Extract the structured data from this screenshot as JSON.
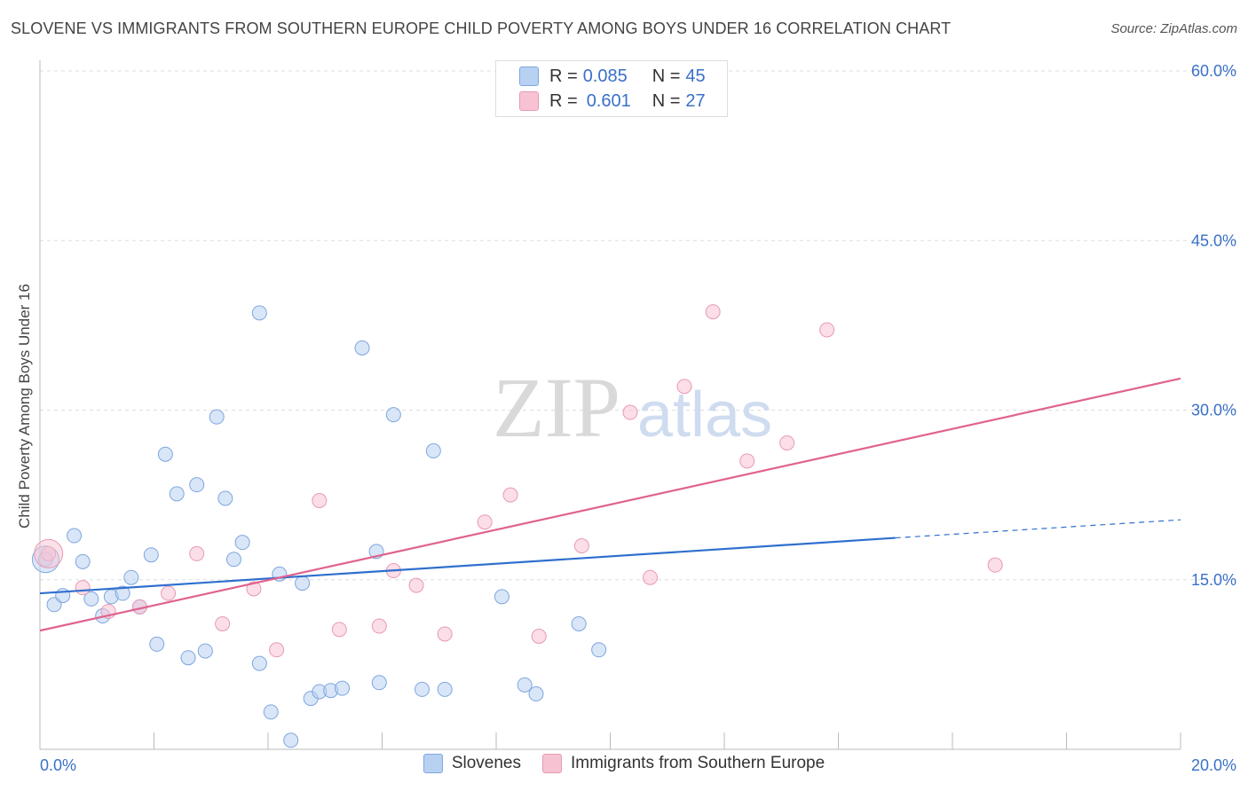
{
  "title": "SLOVENE VS IMMIGRANTS FROM SOUTHERN EUROPE CHILD POVERTY AMONG BOYS UNDER 16 CORRELATION CHART",
  "source": "Source: ZipAtlas.com",
  "watermark": {
    "zip": "ZIP",
    "atlas": "atlas"
  },
  "legend": {
    "rows": [
      {
        "r_label": "R = ",
        "r_value": "0.085",
        "n_label": "N = ",
        "n_value": "45"
      },
      {
        "r_label": "R = ",
        "r_value": "0.601",
        "n_label": "N = ",
        "n_value": "27"
      }
    ]
  },
  "colors": {
    "slovenes_fill": "#b8d1f2",
    "slovenes_stroke": "#7ea6de",
    "slovenes_line": "#2f6fce",
    "immigrants_fill": "#f7c3d3",
    "immigrants_stroke": "#e89ab3",
    "immigrants_line": "#e0628f",
    "tick_text": "#3a70c8",
    "grid": "#dddddd"
  },
  "chart_data": {
    "type": "scatter",
    "title": "SLOVENE VS IMMIGRANTS FROM SOUTHERN EUROPE CHILD POVERTY AMONG BOYS UNDER 16 CORRELATION CHART",
    "xlabel": "",
    "ylabel": "Child Poverty Among Boys Under 16",
    "xlim": [
      0,
      20
    ],
    "ylim": [
      0,
      60
    ],
    "x_tick_labels": [
      "0.0%",
      "20.0%"
    ],
    "y_ticks": [
      15,
      30,
      45,
      60
    ],
    "y_tick_labels": [
      "15.0%",
      "30.0%",
      "45.0%",
      "60.0%"
    ],
    "grid": true,
    "legend_position": "bottom",
    "series": [
      {
        "name": "Slovenes",
        "r": 0.085,
        "n": 45,
        "trend": {
          "x0": 0,
          "y0": 13.8,
          "x1": 15,
          "y1": 18.7,
          "dashed_to_x": 20,
          "dashed_to_y": 20.3
        },
        "points": [
          [
            0.1,
            16.8
          ],
          [
            0.25,
            12.8
          ],
          [
            0.4,
            13.6
          ],
          [
            0.6,
            18.9
          ],
          [
            0.75,
            16.6
          ],
          [
            0.9,
            13.3
          ],
          [
            1.1,
            11.8
          ],
          [
            1.25,
            13.5
          ],
          [
            1.45,
            13.8
          ],
          [
            1.6,
            15.2
          ],
          [
            1.75,
            12.6
          ],
          [
            1.95,
            17.2
          ],
          [
            2.05,
            9.3
          ],
          [
            2.2,
            26.1
          ],
          [
            2.4,
            22.6
          ],
          [
            2.6,
            8.1
          ],
          [
            2.75,
            23.4
          ],
          [
            2.9,
            8.7
          ],
          [
            3.1,
            29.4
          ],
          [
            3.25,
            22.2
          ],
          [
            3.4,
            16.8
          ],
          [
            3.55,
            18.3
          ],
          [
            3.85,
            38.6
          ],
          [
            3.85,
            7.6
          ],
          [
            4.05,
            3.3
          ],
          [
            4.2,
            15.5
          ],
          [
            4.4,
            0.8
          ],
          [
            4.6,
            14.7
          ],
          [
            4.75,
            4.5
          ],
          [
            4.9,
            5.1
          ],
          [
            5.1,
            5.2
          ],
          [
            5.3,
            5.4
          ],
          [
            5.65,
            35.5
          ],
          [
            5.9,
            17.5
          ],
          [
            5.95,
            5.9
          ],
          [
            6.2,
            29.6
          ],
          [
            6.7,
            5.3
          ],
          [
            6.9,
            26.4
          ],
          [
            7.1,
            5.3
          ],
          [
            8.1,
            13.5
          ],
          [
            8.5,
            5.7
          ],
          [
            8.7,
            4.9
          ],
          [
            9.45,
            11.1
          ],
          [
            9.8,
            8.8
          ],
          [
            11.25,
            57.8
          ]
        ]
      },
      {
        "name": "Immigrants from Southern Europe",
        "r": 0.601,
        "n": 27,
        "trend": {
          "x0": 0,
          "y0": 10.5,
          "x1": 20,
          "y1": 32.8
        },
        "points": [
          [
            0.15,
            17.3
          ],
          [
            0.75,
            14.3
          ],
          [
            1.2,
            12.2
          ],
          [
            1.75,
            12.6
          ],
          [
            2.25,
            13.8
          ],
          [
            2.75,
            17.3
          ],
          [
            3.2,
            11.1
          ],
          [
            3.75,
            14.2
          ],
          [
            4.15,
            8.8
          ],
          [
            4.9,
            22.0
          ],
          [
            5.25,
            10.6
          ],
          [
            5.95,
            10.9
          ],
          [
            6.2,
            15.8
          ],
          [
            6.6,
            14.5
          ],
          [
            7.1,
            10.2
          ],
          [
            7.8,
            20.1
          ],
          [
            8.25,
            22.5
          ],
          [
            8.75,
            10.0
          ],
          [
            9.5,
            18.0
          ],
          [
            10.35,
            29.8
          ],
          [
            10.7,
            15.2
          ],
          [
            11.3,
            32.1
          ],
          [
            11.8,
            38.7
          ],
          [
            12.4,
            25.5
          ],
          [
            13.1,
            27.1
          ],
          [
            13.8,
            37.1
          ],
          [
            16.75,
            16.3
          ]
        ]
      }
    ]
  },
  "bottom_legend": {
    "slovenes": "Slovenes",
    "immigrants": "Immigrants from Southern Europe"
  }
}
